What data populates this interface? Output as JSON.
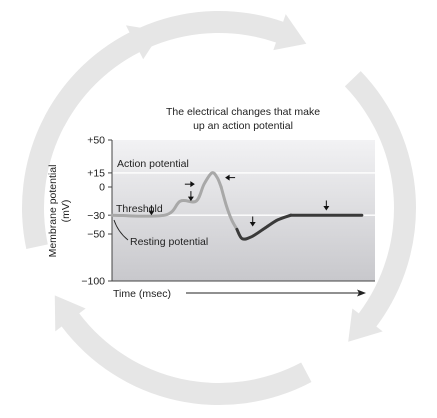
{
  "title_line1": "The electrical changes that make",
  "title_line2": "up an action potential",
  "y_axis_label_line1": "Membrane potential",
  "y_axis_label_line2": "(mV)",
  "x_axis_label": "Time (msec)",
  "annotations": {
    "action_potential": "Action potential",
    "threshold": "Threshold",
    "resting_potential": "Resting potential"
  },
  "colors": {
    "plot_background_top": "#f2f2f4",
    "plot_background_bottom": "#c8c8cc",
    "trace_light": "#a8a8a8",
    "trace_dark": "#3a3a3a",
    "cycle_arrow": "#e6e6e6"
  },
  "chart_data": {
    "type": "line",
    "y_ticks": [
      {
        "value": 50,
        "label": "+50"
      },
      {
        "value": 15,
        "label": "+15"
      },
      {
        "value": 0,
        "label": "0"
      },
      {
        "value": -30,
        "label": "−30"
      },
      {
        "value": -50,
        "label": "−50"
      },
      {
        "value": -100,
        "label": "−100"
      }
    ],
    "ylim": [
      -100,
      50
    ],
    "xlim": [
      0,
      10
    ],
    "reference_lines": [
      15,
      -30
    ],
    "series": [
      {
        "style": "light",
        "x": [
          0,
          2.0,
          2.6,
          3.2,
          3.5,
          3.8,
          4.0,
          4.15
        ],
        "y": [
          -30,
          -30,
          -15,
          -15,
          3,
          15,
          10,
          0
        ]
      },
      {
        "style": "light",
        "x": [
          4.15,
          4.35,
          4.55,
          4.75
        ],
        "y": [
          0,
          -20,
          -35,
          -45
        ]
      },
      {
        "style": "dark",
        "x": [
          4.75,
          4.95,
          5.3,
          5.8,
          6.3,
          6.8
        ],
        "y": [
          -45,
          -55,
          -53,
          -44,
          -35,
          -30
        ]
      },
      {
        "style": "dark",
        "x": [
          6.8,
          9.5
        ],
        "y": [
          -30,
          -30
        ]
      }
    ],
    "markers": [
      {
        "x": 1.5,
        "y": -30,
        "kind": "down-arrow"
      },
      {
        "x": 3.0,
        "y": -15,
        "kind": "down-arrow"
      },
      {
        "x": 3.15,
        "y": 3,
        "kind": "right-arrow"
      },
      {
        "x": 4.3,
        "y": 10,
        "kind": "left-arrow"
      },
      {
        "x": 5.35,
        "y": -42,
        "kind": "down-arrow"
      },
      {
        "x": 8.15,
        "y": -25,
        "kind": "down-arrow"
      }
    ]
  }
}
